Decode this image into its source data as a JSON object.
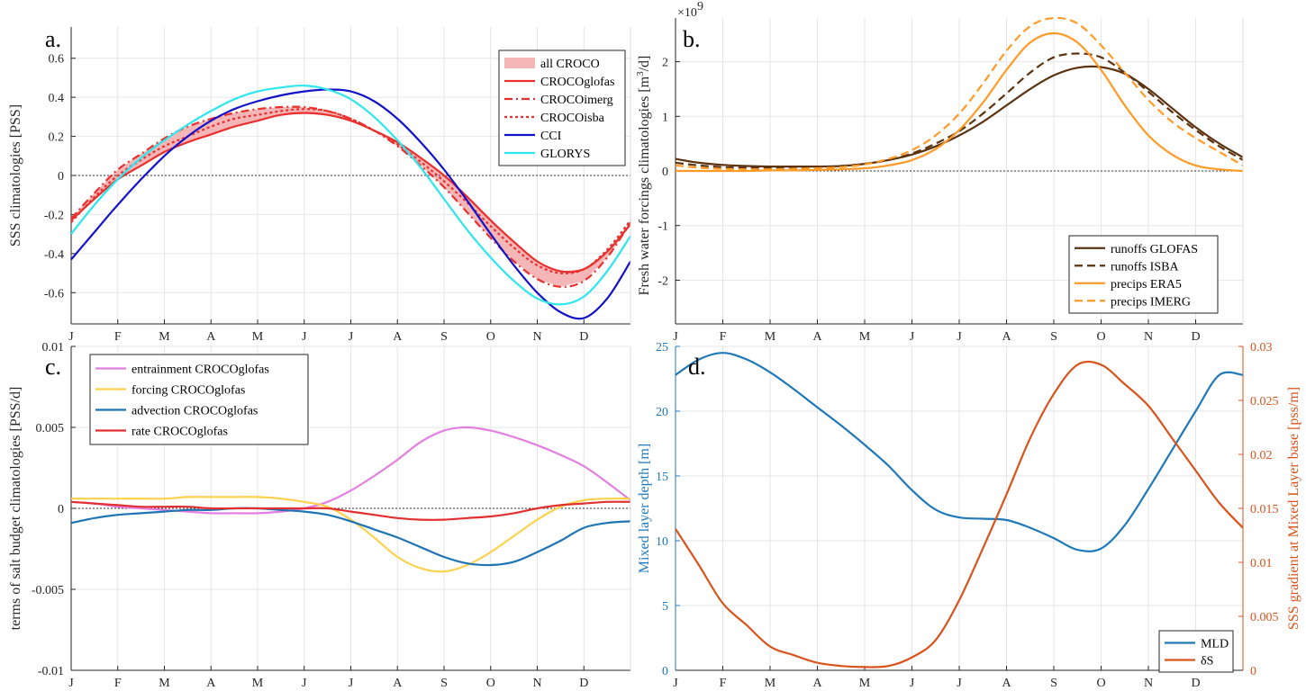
{
  "months": [
    "J",
    "F",
    "M",
    "A",
    "M",
    "J",
    "J",
    "A",
    "S",
    "O",
    "N",
    "D"
  ],
  "colors": {
    "croco": "#e8302e",
    "croco_fill": "#f4b6b6",
    "cci": "#1212c8",
    "glorys": "#2ee6ee",
    "runoff": "#5c3310",
    "precip": "#ff9a26",
    "entrain": "#e27fe0",
    "forcing": "#fcd24d",
    "advection": "#1f74b4",
    "rate": "#e23030",
    "mld": "#1f78b8",
    "ds": "#d9531c"
  },
  "chart_data": [
    {
      "panel": "a.",
      "type": "line",
      "xlim": [
        0,
        12
      ],
      "ylim": [
        -0.76,
        0.76
      ],
      "yticks": [
        -0.6,
        -0.4,
        -0.2,
        0,
        0.2,
        0.4,
        0.6
      ],
      "ytick_labels": [
        "-0.6",
        "-0.4",
        "-0.2",
        "0",
        "0.2",
        "0.4",
        "0.6"
      ],
      "ylabel": "SSS climatologies [PSS]",
      "legend_position": "top-right",
      "band": {
        "name": "all CROCO",
        "upper_series": "CROCOimerg",
        "lower_series": "CROCOglofas"
      },
      "series": [
        {
          "name": "CROCOglofas",
          "style": "solid",
          "color": "#e8302e",
          "x": [
            0,
            0.5,
            1,
            1.5,
            2,
            2.5,
            3,
            3.5,
            4,
            4.5,
            5,
            5.5,
            6,
            6.5,
            7,
            7.5,
            8,
            8.5,
            9,
            9.5,
            10,
            10.5,
            11,
            11.5,
            12
          ],
          "y": [
            -0.23,
            -0.12,
            -0.02,
            0.05,
            0.12,
            0.17,
            0.21,
            0.25,
            0.28,
            0.31,
            0.32,
            0.31,
            0.28,
            0.23,
            0.17,
            0.09,
            0.0,
            -0.11,
            -0.23,
            -0.34,
            -0.44,
            -0.49,
            -0.48,
            -0.39,
            -0.25
          ]
        },
        {
          "name": "CROCOimerg",
          "style": "dashdot",
          "color": "#e8302e",
          "x": [
            0,
            0.5,
            1,
            1.5,
            2,
            2.5,
            3,
            3.5,
            4,
            4.5,
            5,
            5.5,
            6,
            6.5,
            7,
            7.5,
            8,
            8.5,
            9,
            9.5,
            10,
            10.5,
            11,
            11.5,
            12
          ],
          "y": [
            -0.22,
            -0.09,
            0.03,
            0.11,
            0.19,
            0.25,
            0.29,
            0.32,
            0.34,
            0.35,
            0.35,
            0.33,
            0.29,
            0.23,
            0.15,
            0.05,
            -0.06,
            -0.19,
            -0.32,
            -0.44,
            -0.53,
            -0.57,
            -0.54,
            -0.42,
            -0.24
          ]
        },
        {
          "name": "CROCOisba",
          "style": "dotted",
          "color": "#e8302e",
          "x": [
            0,
            0.5,
            1,
            1.5,
            2,
            2.5,
            3,
            3.5,
            4,
            4.5,
            5,
            5.5,
            6,
            6.5,
            7,
            7.5,
            8,
            8.5,
            9,
            9.5,
            10,
            10.5,
            11,
            11.5,
            12
          ],
          "y": [
            -0.24,
            -0.11,
            0.0,
            0.08,
            0.15,
            0.2,
            0.25,
            0.29,
            0.31,
            0.33,
            0.34,
            0.33,
            0.29,
            0.23,
            0.16,
            0.07,
            -0.03,
            -0.14,
            -0.26,
            -0.37,
            -0.46,
            -0.5,
            -0.48,
            -0.38,
            -0.23
          ]
        },
        {
          "name": "CCI",
          "style": "solid",
          "color": "#1212c8",
          "x": [
            0,
            0.5,
            1,
            1.5,
            2,
            2.5,
            3,
            3.5,
            4,
            4.5,
            5,
            5.5,
            6,
            6.5,
            7,
            7.5,
            8,
            8.5,
            9,
            9.5,
            10,
            10.5,
            11,
            11.5,
            12
          ],
          "y": [
            -0.43,
            -0.29,
            -0.15,
            -0.02,
            0.1,
            0.2,
            0.28,
            0.34,
            0.38,
            0.41,
            0.43,
            0.44,
            0.43,
            0.38,
            0.29,
            0.17,
            0.03,
            -0.13,
            -0.3,
            -0.46,
            -0.6,
            -0.7,
            -0.73,
            -0.63,
            -0.44
          ]
        },
        {
          "name": "GLORYS",
          "style": "solid",
          "color": "#2ee6ee",
          "x": [
            0,
            0.5,
            1,
            1.5,
            2,
            2.5,
            3,
            3.5,
            4,
            4.5,
            5,
            5.5,
            6,
            6.5,
            7,
            7.5,
            8,
            8.5,
            9,
            9.5,
            10,
            10.5,
            11,
            11.5,
            12
          ],
          "y": [
            -0.3,
            -0.15,
            -0.02,
            0.09,
            0.18,
            0.26,
            0.33,
            0.39,
            0.43,
            0.45,
            0.46,
            0.44,
            0.39,
            0.3,
            0.18,
            0.04,
            -0.12,
            -0.28,
            -0.42,
            -0.54,
            -0.63,
            -0.66,
            -0.62,
            -0.49,
            -0.31
          ]
        }
      ]
    },
    {
      "panel": "b.",
      "type": "line",
      "xlim": [
        0,
        12
      ],
      "ylim": [
        -2.8,
        2.8
      ],
      "yticks": [
        -2,
        -1,
        0,
        1,
        2
      ],
      "ytick_labels": [
        "-2",
        "-1",
        "0",
        "1",
        "2"
      ],
      "exponent_label": "×10",
      "exponent_power": "9",
      "ylabel_main": "Fresh water forcings climatologies [m",
      "ylabel_sup": "3",
      "ylabel_tail": "/d]",
      "legend_position": "bottom-right",
      "series": [
        {
          "name": "runoffs GLOFAS",
          "style": "solid",
          "color": "#5c3310",
          "x": [
            0,
            0.5,
            1,
            1.5,
            2,
            2.5,
            3,
            3.5,
            4,
            4.5,
            5,
            5.5,
            6,
            6.5,
            7,
            7.5,
            8,
            8.5,
            9,
            9.5,
            10,
            10.5,
            11,
            11.5,
            12
          ],
          "y": [
            0.22,
            0.15,
            0.11,
            0.09,
            0.08,
            0.08,
            0.08,
            0.09,
            0.13,
            0.2,
            0.3,
            0.45,
            0.65,
            0.9,
            1.2,
            1.5,
            1.75,
            1.89,
            1.9,
            1.78,
            1.5,
            1.15,
            0.8,
            0.5,
            0.25
          ]
        },
        {
          "name": "runoffs ISBA",
          "style": "dashed",
          "color": "#5c3310",
          "x": [
            0,
            0.5,
            1,
            1.5,
            2,
            2.5,
            3,
            3.5,
            4,
            4.5,
            5,
            5.5,
            6,
            6.5,
            7,
            7.5,
            8,
            8.5,
            9,
            9.5,
            10,
            10.5,
            11,
            11.5,
            12
          ],
          "y": [
            0.15,
            0.1,
            0.07,
            0.06,
            0.06,
            0.06,
            0.07,
            0.09,
            0.13,
            0.2,
            0.32,
            0.5,
            0.73,
            1.05,
            1.42,
            1.8,
            2.08,
            2.15,
            2.08,
            1.8,
            1.45,
            1.08,
            0.75,
            0.45,
            0.2
          ]
        },
        {
          "name": "precips ERA5",
          "style": "solid",
          "color": "#ff9a26",
          "x": [
            0,
            0.5,
            1,
            1.5,
            2,
            2.5,
            3,
            3.5,
            4,
            4.5,
            5,
            5.5,
            6,
            6.5,
            7,
            7.5,
            8,
            8.5,
            9,
            9.5,
            10,
            10.5,
            11,
            11.5,
            12
          ],
          "y": [
            0.0,
            0.0,
            0.0,
            0.0,
            0.01,
            0.01,
            0.02,
            0.03,
            0.05,
            0.1,
            0.2,
            0.4,
            0.75,
            1.25,
            1.85,
            2.35,
            2.52,
            2.35,
            1.85,
            1.2,
            0.65,
            0.3,
            0.1,
            0.03,
            0.0
          ]
        },
        {
          "name": "precips IMERG",
          "style": "dashed",
          "color": "#ff9a26",
          "x": [
            0,
            0.5,
            1,
            1.5,
            2,
            2.5,
            3,
            3.5,
            4,
            4.5,
            5,
            5.5,
            6,
            6.5,
            7,
            7.5,
            8,
            8.5,
            9,
            9.5,
            10,
            10.5,
            11,
            11.5,
            12
          ],
          "y": [
            0.1,
            0.06,
            0.04,
            0.03,
            0.03,
            0.04,
            0.05,
            0.07,
            0.12,
            0.22,
            0.38,
            0.65,
            1.05,
            1.6,
            2.2,
            2.65,
            2.8,
            2.7,
            2.3,
            1.8,
            1.3,
            0.9,
            0.6,
            0.35,
            0.1
          ]
        }
      ]
    },
    {
      "panel": "c.",
      "type": "line",
      "xlim": [
        0,
        12
      ],
      "ylim": [
        -0.01,
        0.01
      ],
      "yticks": [
        -0.01,
        -0.005,
        0,
        0.005,
        0.01
      ],
      "ytick_labels": [
        "-0.01",
        "-0.005",
        "0",
        "0.005",
        "0.01"
      ],
      "ylabel": "terms of salt budget climatologies [PSS/d]",
      "legend_position": "top-left",
      "series": [
        {
          "name": "entrainment CROCOglofas",
          "style": "solid",
          "color": "#e27fe0",
          "x": [
            0,
            0.5,
            1,
            1.5,
            2,
            2.5,
            3,
            3.5,
            4,
            4.5,
            5,
            5.5,
            6,
            6.5,
            7,
            7.5,
            8,
            8.5,
            9,
            9.5,
            10,
            10.5,
            11,
            11.5,
            12
          ],
          "y": [
            0.0004,
            0.0003,
            0.0001,
            0.0,
            -0.0001,
            -0.0002,
            -0.0003,
            -0.0003,
            -0.0003,
            -0.0002,
            0.0,
            0.0004,
            0.0011,
            0.002,
            0.003,
            0.0041,
            0.0048,
            0.005,
            0.0048,
            0.0044,
            0.0039,
            0.0033,
            0.0026,
            0.0016,
            0.0005
          ]
        },
        {
          "name": "forcing CROCOglofas",
          "style": "solid",
          "color": "#fcd24d",
          "x": [
            0,
            0.5,
            1,
            1.5,
            2,
            2.5,
            3,
            3.5,
            4,
            4.5,
            5,
            5.5,
            6,
            6.5,
            7,
            7.5,
            8,
            8.5,
            9,
            9.5,
            10,
            10.5,
            11,
            11.5,
            12
          ],
          "y": [
            0.0006,
            0.0006,
            0.0006,
            0.0006,
            0.0006,
            0.0007,
            0.0007,
            0.0007,
            0.0007,
            0.0006,
            0.0004,
            0.0001,
            -0.0007,
            -0.0018,
            -0.003,
            -0.0037,
            -0.0039,
            -0.0035,
            -0.0027,
            -0.0017,
            -0.0007,
            0.0001,
            0.0005,
            0.0006,
            0.0006
          ]
        },
        {
          "name": "advection CROCOglofas",
          "style": "solid",
          "color": "#1f74b4",
          "x": [
            0,
            0.5,
            1,
            1.5,
            2,
            2.5,
            3,
            3.5,
            4,
            4.5,
            5,
            5.5,
            6,
            6.5,
            7,
            7.5,
            8,
            8.5,
            9,
            9.5,
            10,
            10.5,
            11,
            11.5,
            12
          ],
          "y": [
            -0.0009,
            -0.0006,
            -0.0004,
            -0.0003,
            -0.0002,
            -0.0001,
            -0.0001,
            0.0,
            0.0,
            -0.0001,
            -0.0002,
            -0.0004,
            -0.0008,
            -0.0013,
            -0.0018,
            -0.0024,
            -0.003,
            -0.0034,
            -0.0035,
            -0.0033,
            -0.0027,
            -0.002,
            -0.0012,
            -0.0009,
            -0.0008
          ]
        },
        {
          "name": "rate CROCOglofas",
          "style": "solid",
          "color": "#e23030",
          "x": [
            0,
            0.5,
            1,
            1.5,
            2,
            2.5,
            3,
            3.5,
            4,
            4.5,
            5,
            5.5,
            6,
            6.5,
            7,
            7.5,
            8,
            8.5,
            9,
            9.5,
            10,
            10.5,
            11,
            11.5,
            12
          ],
          "y": [
            0.0004,
            0.0003,
            0.0002,
            0.0001,
            0.0001,
            0.0001,
            0.0,
            0.0,
            0.0,
            0.0,
            0.0,
            0.0,
            -0.0002,
            -0.0004,
            -0.0006,
            -0.0007,
            -0.0007,
            -0.0006,
            -0.0005,
            -0.0003,
            0.0,
            0.0002,
            0.0003,
            0.0004,
            0.0004
          ]
        }
      ]
    },
    {
      "panel": "d.",
      "type": "line",
      "xlim": [
        0,
        12
      ],
      "ylim_left": [
        0,
        25
      ],
      "ylim_right": [
        0,
        0.03
      ],
      "yticks_left": [
        0,
        5,
        10,
        15,
        20,
        25
      ],
      "ytick_labels_left": [
        "0",
        "5",
        "10",
        "15",
        "20",
        "25"
      ],
      "yticks_right": [
        0,
        0.005,
        0.01,
        0.015,
        0.02,
        0.025,
        0.03
      ],
      "ytick_labels_right": [
        "0",
        "0.005",
        "0.01",
        "0.015",
        "0.02",
        "0.025",
        "0.03"
      ],
      "ylabel_left": "Mixed layer depth [m]",
      "ylabel_right": "SSS gradient at Mixed Layer base [pss/m]",
      "legend_position": "bottom-right",
      "series": [
        {
          "name": "MLD",
          "axis": "left",
          "style": "solid",
          "color": "#1f78b8",
          "x": [
            0,
            0.5,
            1,
            1.5,
            2,
            2.5,
            3,
            3.5,
            4,
            4.5,
            5,
            5.5,
            6,
            6.5,
            7,
            7.5,
            8,
            8.5,
            9,
            9.5,
            10,
            10.5,
            11,
            11.5,
            12
          ],
          "y": [
            22.8,
            24.0,
            24.5,
            24.0,
            23.0,
            21.7,
            20.3,
            18.9,
            17.4,
            15.8,
            13.9,
            12.4,
            11.8,
            11.7,
            11.6,
            11.0,
            10.2,
            9.3,
            9.4,
            11.2,
            14.0,
            17.0,
            20.0,
            22.8,
            22.8
          ]
        },
        {
          "name": "δS",
          "axis": "right",
          "style": "solid",
          "color": "#d9531c",
          "x": [
            0,
            0.5,
            1,
            1.5,
            2,
            2.5,
            3,
            3.5,
            4,
            4.5,
            5,
            5.5,
            6,
            6.5,
            7,
            7.5,
            8,
            8.5,
            9,
            9.5,
            10,
            10.5,
            11,
            11.5,
            12
          ],
          "y": [
            0.0131,
            0.0097,
            0.0062,
            0.0042,
            0.0022,
            0.0014,
            0.0007,
            0.0004,
            0.0003,
            0.0004,
            0.0012,
            0.0028,
            0.0065,
            0.0113,
            0.0163,
            0.0215,
            0.0256,
            0.0283,
            0.0283,
            0.0265,
            0.0245,
            0.0215,
            0.0185,
            0.0155,
            0.0132
          ]
        }
      ]
    }
  ]
}
